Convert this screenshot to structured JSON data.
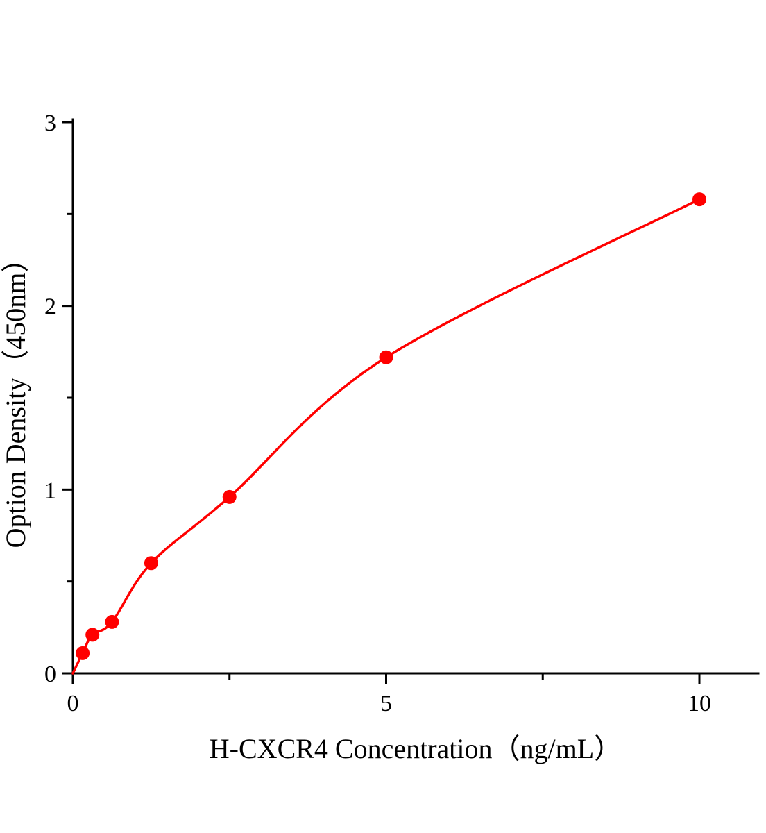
{
  "chart_data": {
    "type": "scatter",
    "title": "",
    "xlabel": "H-CXCR4 Concentration（ng/mL）",
    "ylabel": "Option Density（450nm）",
    "x": [
      0.156,
      0.3125,
      0.625,
      1.25,
      2.5,
      5,
      10
    ],
    "y": [
      0.11,
      0.21,
      0.28,
      0.6,
      0.96,
      1.72,
      2.58
    ],
    "curve_start": [
      0,
      0
    ],
    "xlim": [
      0,
      10.9
    ],
    "ylim": [
      0,
      3
    ],
    "x_major_ticks": [
      0,
      5,
      10
    ],
    "x_major_tick_labels": [
      "0",
      "5",
      "10"
    ],
    "x_minor_ticks": [
      2.5,
      7.5
    ],
    "y_major_ticks": [
      0,
      1,
      2,
      3
    ],
    "y_major_tick_labels": [
      "0",
      "1",
      "2",
      "3"
    ],
    "y_minor_ticks": [
      0.5,
      1.5,
      2.5
    ],
    "line_color": "#ff0000",
    "marker_color": "#ff0000",
    "axis_color": "#000000",
    "grid": "off",
    "legend": "none"
  }
}
